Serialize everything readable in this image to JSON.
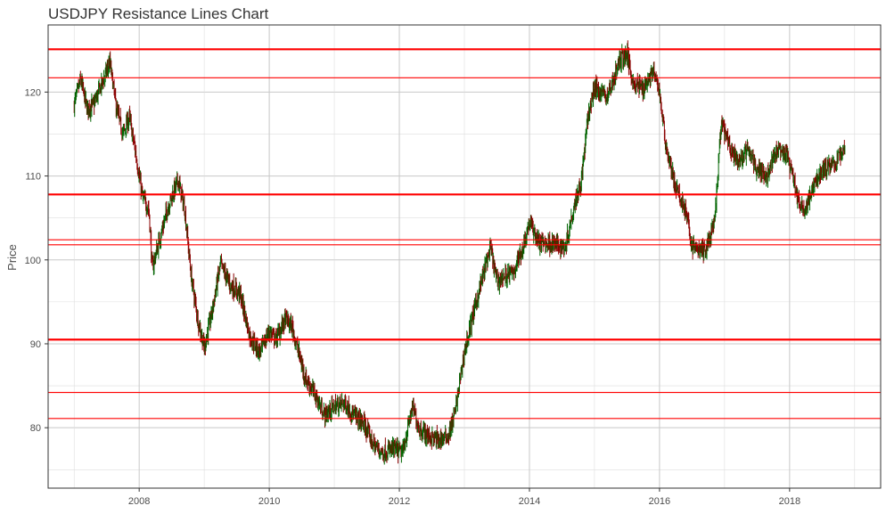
{
  "chart_data": {
    "type": "candlestick",
    "title": "USDJPY Resistance Lines Chart",
    "xlabel": "",
    "ylabel": "Price",
    "x_ticks": [
      "2008",
      "2010",
      "2012",
      "2014",
      "2016",
      "2018"
    ],
    "y_ticks": [
      "80",
      "90",
      "100",
      "110",
      "120"
    ],
    "xlim": [
      2006.6,
      2019.4
    ],
    "ylim": [
      72.8,
      128.0
    ],
    "grid": true,
    "colors": {
      "up": "#006400",
      "down": "#8b0000",
      "resistance": "#ff0000",
      "grid": "#c8c8c8",
      "frame": "#333333"
    },
    "resistance_lines": [
      {
        "y": 125.1,
        "weight": "thick"
      },
      {
        "y": 121.7,
        "weight": "thin"
      },
      {
        "y": 107.8,
        "weight": "thick"
      },
      {
        "y": 102.4,
        "weight": "thin"
      },
      {
        "y": 101.8,
        "weight": "thin"
      },
      {
        "y": 90.5,
        "weight": "thick"
      },
      {
        "y": 84.2,
        "weight": "thin"
      },
      {
        "y": 81.1,
        "weight": "thin"
      }
    ],
    "price_path": [
      [
        2007.0,
        118.5
      ],
      [
        2007.1,
        121.5
      ],
      [
        2007.2,
        118.0
      ],
      [
        2007.3,
        118.5
      ],
      [
        2007.45,
        121.5
      ],
      [
        2007.55,
        123.5
      ],
      [
        2007.65,
        118.0
      ],
      [
        2007.75,
        115.0
      ],
      [
        2007.85,
        117.0
      ],
      [
        2007.95,
        112.5
      ],
      [
        2008.05,
        107.5
      ],
      [
        2008.15,
        106.0
      ],
      [
        2008.2,
        99.0
      ],
      [
        2008.3,
        102.0
      ],
      [
        2008.45,
        106.5
      ],
      [
        2008.6,
        109.5
      ],
      [
        2008.7,
        106.0
      ],
      [
        2008.8,
        98.0
      ],
      [
        2008.9,
        93.0
      ],
      [
        2009.0,
        89.5
      ],
      [
        2009.1,
        93.0
      ],
      [
        2009.25,
        99.5
      ],
      [
        2009.4,
        97.0
      ],
      [
        2009.55,
        96.0
      ],
      [
        2009.7,
        91.0
      ],
      [
        2009.85,
        89.0
      ],
      [
        2010.0,
        91.5
      ],
      [
        2010.1,
        90.5
      ],
      [
        2010.25,
        93.0
      ],
      [
        2010.35,
        92.0
      ],
      [
        2010.45,
        89.0
      ],
      [
        2010.55,
        86.0
      ],
      [
        2010.7,
        84.0
      ],
      [
        2010.85,
        81.5
      ],
      [
        2011.0,
        82.5
      ],
      [
        2011.15,
        83.0
      ],
      [
        2011.3,
        81.5
      ],
      [
        2011.45,
        80.5
      ],
      [
        2011.6,
        78.0
      ],
      [
        2011.75,
        77.0
      ],
      [
        2011.9,
        77.5
      ],
      [
        2012.05,
        77.0
      ],
      [
        2012.2,
        82.5
      ],
      [
        2012.3,
        80.0
      ],
      [
        2012.45,
        79.0
      ],
      [
        2012.6,
        78.5
      ],
      [
        2012.75,
        79.0
      ],
      [
        2012.85,
        81.5
      ],
      [
        2013.0,
        89.0
      ],
      [
        2013.15,
        94.0
      ],
      [
        2013.3,
        98.5
      ],
      [
        2013.4,
        101.5
      ],
      [
        2013.5,
        97.5
      ],
      [
        2013.6,
        98.0
      ],
      [
        2013.75,
        98.5
      ],
      [
        2013.9,
        101.5
      ],
      [
        2014.0,
        104.5
      ],
      [
        2014.15,
        102.0
      ],
      [
        2014.35,
        102.0
      ],
      [
        2014.55,
        101.5
      ],
      [
        2014.7,
        107.0
      ],
      [
        2014.8,
        109.5
      ],
      [
        2014.9,
        117.0
      ],
      [
        2015.0,
        120.5
      ],
      [
        2015.2,
        119.5
      ],
      [
        2015.4,
        124.0
      ],
      [
        2015.5,
        124.5
      ],
      [
        2015.6,
        121.0
      ],
      [
        2015.75,
        120.5
      ],
      [
        2015.9,
        122.5
      ],
      [
        2016.0,
        120.0
      ],
      [
        2016.1,
        113.5
      ],
      [
        2016.25,
        108.5
      ],
      [
        2016.4,
        106.0
      ],
      [
        2016.5,
        101.5
      ],
      [
        2016.7,
        101.0
      ],
      [
        2016.85,
        104.5
      ],
      [
        2016.95,
        116.5
      ],
      [
        2017.05,
        114.0
      ],
      [
        2017.2,
        111.5
      ],
      [
        2017.35,
        113.0
      ],
      [
        2017.5,
        111.0
      ],
      [
        2017.65,
        110.0
      ],
      [
        2017.8,
        113.0
      ],
      [
        2017.95,
        112.5
      ],
      [
        2018.05,
        110.0
      ],
      [
        2018.15,
        106.5
      ],
      [
        2018.25,
        106.0
      ],
      [
        2018.4,
        109.5
      ],
      [
        2018.55,
        111.0
      ],
      [
        2018.7,
        111.5
      ],
      [
        2018.85,
        113.5
      ]
    ]
  }
}
